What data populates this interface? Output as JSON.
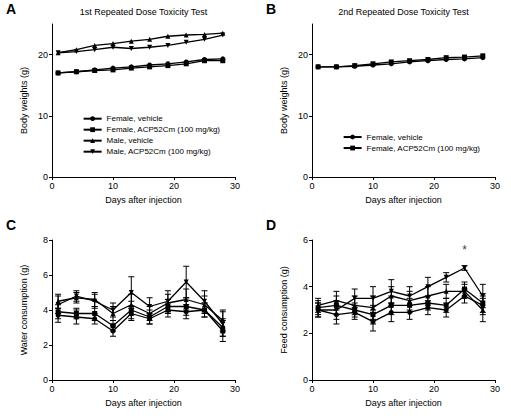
{
  "chart_data": [
    {
      "type": "line",
      "panel": "A",
      "title": "1st Repeated Dose Toxicity Test",
      "x_label": "Days after injection",
      "y_label": "Body weights (g)",
      "x": [
        1,
        4,
        7,
        10,
        13,
        16,
        19,
        22,
        25,
        28
      ],
      "xlim": [
        0,
        30
      ],
      "xticks": [
        0,
        10,
        20,
        30
      ],
      "ylim": [
        0,
        25
      ],
      "yticks": [
        0,
        10,
        20
      ],
      "color": "#000000",
      "legend": "lower center",
      "series": [
        {
          "name": "Female, vehicle",
          "marker": "circle",
          "values": [
            17.0,
            17.2,
            17.5,
            17.8,
            18.0,
            18.3,
            18.5,
            18.8,
            19.2,
            19.3
          ]
        },
        {
          "name": "Female, ACP52Cm (100 mg/kg)",
          "marker": "square",
          "values": [
            17.0,
            17.2,
            17.4,
            17.5,
            17.8,
            18.0,
            18.2,
            18.5,
            19.0,
            19.0
          ]
        },
        {
          "name": "Male, vehicle",
          "marker": "triangle",
          "values": [
            20.3,
            20.8,
            21.5,
            21.8,
            22.2,
            22.5,
            23.0,
            23.2,
            23.3,
            23.5
          ]
        },
        {
          "name": "Male, ACP52Cm (100 mg/kg)",
          "marker": "triangle_down",
          "values": [
            20.3,
            20.5,
            20.8,
            21.2,
            21.0,
            21.2,
            21.5,
            22.0,
            22.5,
            23.2
          ]
        }
      ]
    },
    {
      "type": "line",
      "panel": "B",
      "title": "2nd Repeated Dose Toxicity Test",
      "x_label": "Days after injection",
      "y_label": "Body weights (g)",
      "x": [
        1,
        4,
        7,
        10,
        13,
        16,
        19,
        22,
        25,
        28
      ],
      "xlim": [
        0,
        30
      ],
      "xticks": [
        0,
        10,
        20,
        30
      ],
      "ylim": [
        0,
        25
      ],
      "yticks": [
        0,
        10,
        20
      ],
      "color": "#000000",
      "legend": "lower center",
      "series": [
        {
          "name": "Female, vehicle",
          "marker": "circle",
          "values": [
            18.0,
            18.0,
            18.1,
            18.3,
            18.5,
            18.8,
            19.0,
            19.2,
            19.3,
            19.5
          ]
        },
        {
          "name": "Female, ACP52Cm (100 mg/kg)",
          "marker": "square",
          "values": [
            18.0,
            18.0,
            18.2,
            18.5,
            18.8,
            19.0,
            19.2,
            19.5,
            19.6,
            19.8
          ]
        }
      ]
    },
    {
      "type": "line",
      "panel": "C",
      "x_label": "Days after injection",
      "y_label": "Water consumption (g)",
      "x": [
        1,
        4,
        7,
        10,
        13,
        16,
        19,
        22,
        25,
        28
      ],
      "xlim": [
        0,
        30
      ],
      "xticks": [
        0,
        10,
        20,
        30
      ],
      "ylim": [
        0,
        8
      ],
      "yticks": [
        0,
        2,
        4,
        6,
        8
      ],
      "color": "#000000",
      "series": [
        {
          "marker": "circle",
          "values": [
            3.7,
            3.6,
            3.5,
            2.8,
            3.8,
            3.5,
            4.0,
            3.9,
            4.0,
            3.0
          ],
          "errors": [
            0.4,
            0.4,
            0.3,
            0.3,
            0.4,
            0.3,
            0.4,
            0.4,
            0.4,
            0.5
          ]
        },
        {
          "marker": "square",
          "values": [
            3.9,
            3.8,
            3.8,
            3.1,
            4.0,
            3.6,
            4.2,
            4.2,
            4.0,
            2.8
          ],
          "errors": [
            0.4,
            0.3,
            0.4,
            0.3,
            0.5,
            0.4,
            0.4,
            0.5,
            0.4,
            0.6
          ]
        },
        {
          "marker": "triangle",
          "values": [
            4.5,
            4.7,
            4.6,
            3.8,
            4.3,
            3.8,
            4.4,
            4.6,
            4.3,
            3.4
          ],
          "errors": [
            0.4,
            0.3,
            0.4,
            0.4,
            0.6,
            0.4,
            0.5,
            0.6,
            0.5,
            0.6
          ]
        },
        {
          "marker": "triangle_down",
          "values": [
            4.3,
            4.8,
            4.5,
            4.0,
            5.0,
            4.2,
            4.5,
            5.6,
            4.5,
            3.2
          ],
          "errors": [
            0.5,
            0.3,
            0.4,
            0.4,
            0.9,
            0.5,
            0.6,
            0.9,
            0.6,
            0.7
          ]
        }
      ]
    },
    {
      "type": "line",
      "panel": "D",
      "x_label": "Days after injection",
      "y_label": "Feed consumption (g)",
      "x": [
        1,
        4,
        7,
        10,
        13,
        16,
        19,
        22,
        25,
        28
      ],
      "xlim": [
        0,
        30
      ],
      "xticks": [
        0,
        10,
        20,
        30
      ],
      "ylim": [
        0,
        6
      ],
      "yticks": [
        0,
        2,
        4,
        6
      ],
      "color": "#000000",
      "annotations": [
        {
          "text": "*",
          "x": 25,
          "y": 5.1
        }
      ],
      "series": [
        {
          "marker": "circle",
          "values": [
            3.0,
            2.8,
            2.9,
            2.5,
            2.9,
            2.9,
            3.1,
            3.0,
            3.6,
            3.2
          ],
          "errors": [
            0.3,
            0.4,
            0.3,
            0.4,
            0.4,
            0.3,
            0.3,
            0.3,
            0.3,
            0.4
          ]
        },
        {
          "marker": "square",
          "values": [
            3.1,
            3.2,
            3.0,
            2.8,
            3.2,
            3.2,
            3.3,
            3.2,
            3.9,
            3.3
          ],
          "errors": [
            0.3,
            0.4,
            0.3,
            0.4,
            0.4,
            0.3,
            0.3,
            0.3,
            0.3,
            0.4
          ]
        },
        {
          "marker": "triangle",
          "values": [
            3.2,
            3.4,
            3.2,
            3.1,
            3.6,
            3.4,
            3.6,
            3.8,
            3.8,
            3.0
          ],
          "errors": [
            0.3,
            0.4,
            0.4,
            0.5,
            0.4,
            0.4,
            0.4,
            0.3,
            0.3,
            0.5
          ]
        },
        {
          "marker": "triangle_down",
          "values": [
            3.0,
            3.0,
            3.5,
            3.5,
            3.8,
            3.6,
            4.0,
            4.4,
            4.8,
            3.6
          ],
          "errors": [
            0.3,
            0.4,
            0.4,
            0.5,
            0.5,
            0.4,
            0.4,
            0.2,
            0.1,
            0.5
          ]
        }
      ]
    }
  ]
}
